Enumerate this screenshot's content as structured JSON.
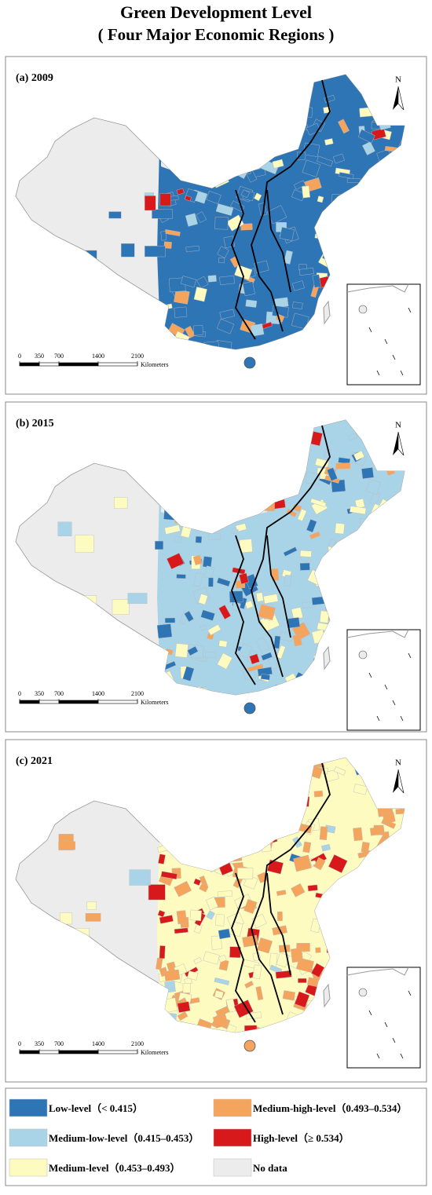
{
  "title": "Green Development Level",
  "subtitle": "( Four Major Economic Regions )",
  "panels": [
    {
      "label": "(a) 2009"
    },
    {
      "label": "(b) 2015"
    },
    {
      "label": "(c) 2021"
    }
  ],
  "scale_bar": {
    "ticks": [
      0,
      350,
      700,
      1400,
      2100
    ],
    "unit": "Kilometers"
  },
  "north": "N",
  "legend": [
    {
      "label": "Low-level（< 0.415）",
      "color": "#2e75b6"
    },
    {
      "label": "Medium-low-level（0.415–0.453）",
      "color": "#a9d4e8"
    },
    {
      "label": "Medium-level（0.453–0.493）",
      "color": "#fdfbc0"
    },
    {
      "label": "Medium-high-level（0.493–0.534）",
      "color": "#f4a45c"
    },
    {
      "label": "High-level（≥ 0.534）",
      "color": "#d7191c"
    },
    {
      "label": "No data",
      "color": "#ececec"
    }
  ]
}
